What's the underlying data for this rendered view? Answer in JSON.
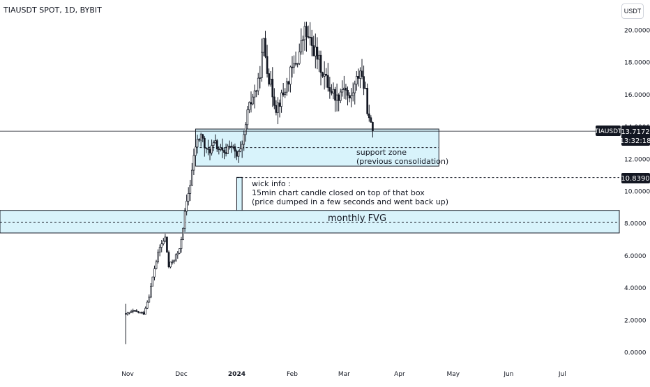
{
  "header": {
    "symbol_title": "TIAUSDT SPOT, 1D, BYBIT",
    "currency_label": "USDT"
  },
  "price_labels": {
    "symbol": "TIAUSDT",
    "last_price": "13.7172",
    "countdown": "13:32:18",
    "level_price": "10.8390"
  },
  "annotations": {
    "support_line1": "support zone",
    "support_line2": "(previous consolidation)",
    "wick_line1": "wick info :",
    "wick_line2": "15min chart candle closed on top of that box",
    "wick_line3": "(price dumped in a few seconds and went back up)",
    "fvg_label": "monthly FVG"
  },
  "colors": {
    "candle": "#131722",
    "zone_fill": "#d8f3fb",
    "zone_border": "#131722",
    "label_bg": "#131722",
    "label_text": "#ffffff"
  },
  "chart_data": {
    "type": "candlestick",
    "title": "TIAUSDT SPOT, 1D, BYBIT",
    "ylim": [
      0,
      20.6
    ],
    "y_ticks": [
      "0.0000",
      "2.0000",
      "4.0000",
      "6.0000",
      "8.0000",
      "10.0000",
      "12.0000",
      "14.0000",
      "16.0000",
      "18.0000",
      "20.0000"
    ],
    "x_ticks": [
      {
        "date": "2023-11-01",
        "label": "Nov"
      },
      {
        "date": "2023-12-01",
        "label": "Dec"
      },
      {
        "date": "2024-01-01",
        "label": "2024"
      },
      {
        "date": "2024-02-01",
        "label": "Feb"
      },
      {
        "date": "2024-03-01",
        "label": "Mar"
      },
      {
        "date": "2024-04-01",
        "label": "Apr"
      },
      {
        "date": "2024-05-01",
        "label": "May"
      },
      {
        "date": "2024-06-01",
        "label": "Jun"
      },
      {
        "date": "2024-07-01",
        "label": "Jul"
      }
    ],
    "last_price": 13.7172,
    "horizontal_level": 10.839,
    "zones": [
      {
        "name": "support zone",
        "from": "2023-12-09",
        "to": "2024-04-23",
        "low": 11.55,
        "high": 13.85,
        "mid": 12.7
      },
      {
        "name": "wick info",
        "from": "2024-01-01",
        "to": "2024-01-04",
        "low": 8.75,
        "high": 10.85
      },
      {
        "name": "monthly FVG",
        "from_edge": "left",
        "to_edge": "right",
        "low": 7.4,
        "high": 8.8,
        "mid": 8.05
      }
    ],
    "keypoints": [
      {
        "date": "2023-10-31",
        "price": 0.5
      },
      {
        "date": "2023-11-01",
        "price": 2.4
      },
      {
        "date": "2023-11-04",
        "price": 2.55
      },
      {
        "date": "2023-11-10",
        "price": 2.4
      },
      {
        "date": "2023-11-13",
        "price": 3.5
      },
      {
        "date": "2023-11-16",
        "price": 5.2
      },
      {
        "date": "2023-11-19",
        "price": 6.5
      },
      {
        "date": "2023-11-22",
        "price": 7.1
      },
      {
        "date": "2023-11-24",
        "price": 5.3
      },
      {
        "date": "2023-11-27",
        "price": 5.8
      },
      {
        "date": "2023-11-30",
        "price": 6.3
      },
      {
        "date": "2023-12-03",
        "price": 8.6
      },
      {
        "date": "2023-12-06",
        "price": 10.5
      },
      {
        "date": "2023-12-09",
        "price": 12.8
      },
      {
        "date": "2023-12-12",
        "price": 13.5
      },
      {
        "date": "2023-12-15",
        "price": 12.4
      },
      {
        "date": "2023-12-20",
        "price": 12.9
      },
      {
        "date": "2023-12-25",
        "price": 12.2
      },
      {
        "date": "2023-12-28",
        "price": 13.0
      },
      {
        "date": "2024-01-01",
        "price": 12.1
      },
      {
        "date": "2024-01-04",
        "price": 12.6
      },
      {
        "date": "2024-01-07",
        "price": 14.8
      },
      {
        "date": "2024-01-10",
        "price": 15.9
      },
      {
        "date": "2024-01-13",
        "price": 16.6
      },
      {
        "date": "2024-01-16",
        "price": 19.2
      },
      {
        "date": "2024-01-19",
        "price": 17.0
      },
      {
        "date": "2024-01-23",
        "price": 15.2
      },
      {
        "date": "2024-01-27",
        "price": 16.0
      },
      {
        "date": "2024-01-31",
        "price": 17.3
      },
      {
        "date": "2024-02-04",
        "price": 18.2
      },
      {
        "date": "2024-02-08",
        "price": 19.9
      },
      {
        "date": "2024-02-11",
        "price": 19.2
      },
      {
        "date": "2024-02-14",
        "price": 18.6
      },
      {
        "date": "2024-02-18",
        "price": 17.4
      },
      {
        "date": "2024-02-22",
        "price": 16.4
      },
      {
        "date": "2024-02-26",
        "price": 15.8
      },
      {
        "date": "2024-03-01",
        "price": 16.6
      },
      {
        "date": "2024-03-04",
        "price": 15.6
      },
      {
        "date": "2024-03-07",
        "price": 16.5
      },
      {
        "date": "2024-03-10",
        "price": 17.6
      },
      {
        "date": "2024-03-13",
        "price": 16.0
      },
      {
        "date": "2024-03-15",
        "price": 14.3
      },
      {
        "date": "2024-03-17",
        "price": 13.72
      }
    ]
  }
}
